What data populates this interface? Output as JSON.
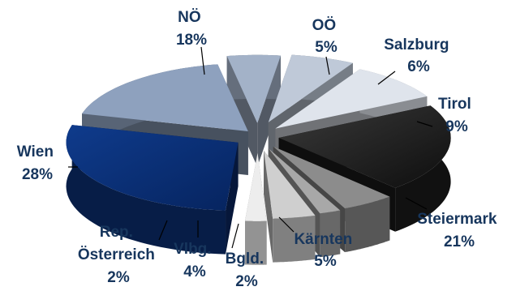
{
  "chart_data": {
    "type": "pie",
    "title": "",
    "style": "3d-exploded",
    "legend": "none",
    "slices": [
      {
        "label": "NÖ",
        "value": 18,
        "value_text": "18%",
        "color": "#8ea1be"
      },
      {
        "label": "OÖ",
        "value": 5,
        "value_text": "5%",
        "color": "#a3b2c8"
      },
      {
        "label": "Salzburg",
        "value": 6,
        "value_text": "6%",
        "color": "#bfc9d8"
      },
      {
        "label": "Tirol",
        "value": 9,
        "value_text": "9%",
        "color": "#dfe4ec"
      },
      {
        "label": "Steiermark",
        "value": 21,
        "value_text": "21%",
        "color": "#1c1c1c"
      },
      {
        "label": "Kärnten",
        "value": 5,
        "value_text": "5%",
        "color": "#8c8c8c"
      },
      {
        "label": "Bgld.",
        "value": 2,
        "value_text": "2%",
        "color": "#a8a8a8"
      },
      {
        "label": "Vlbg.",
        "value": 4,
        "value_text": "4%",
        "color": "#cfcfcf"
      },
      {
        "label": "Rep.\nÖsterreich",
        "value": 2,
        "value_text": "2%",
        "color": "#ededed"
      },
      {
        "label": "Wien",
        "value": 28,
        "value_text": "28%",
        "color": "#0b2e73"
      }
    ]
  }
}
